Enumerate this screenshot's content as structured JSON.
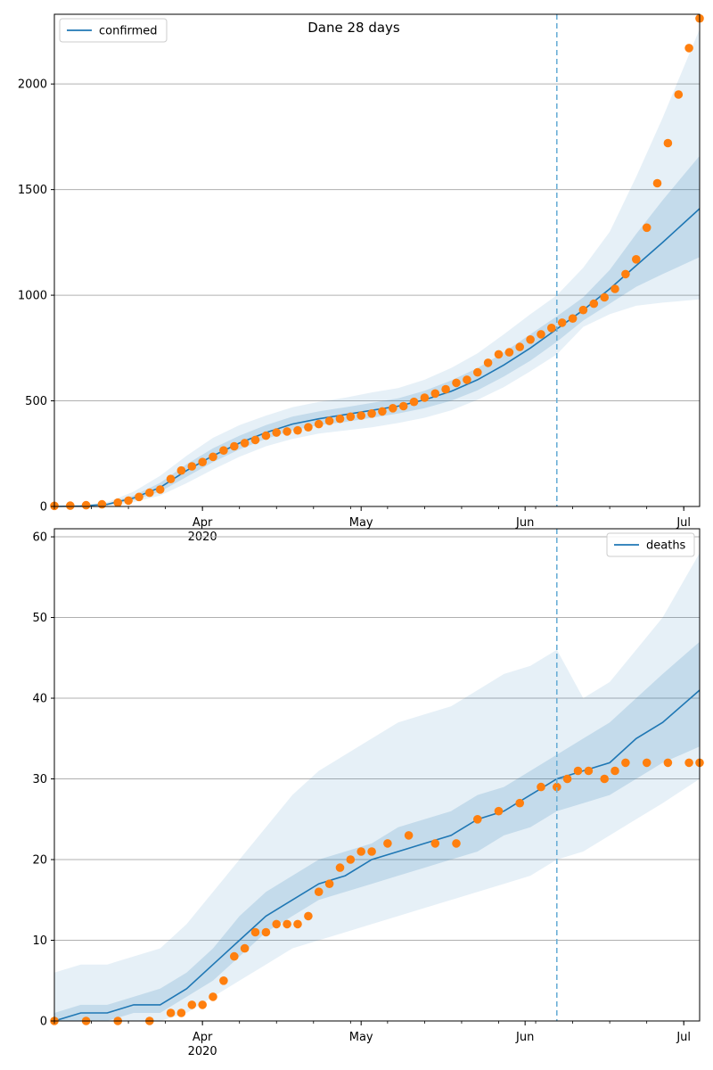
{
  "title": "Dane 28 days",
  "colors": {
    "line": "#1f77b4",
    "band": "#1f77b4",
    "points": "#ff7f0e",
    "grid": "#b0b0b0",
    "vline": "#6aaed6"
  },
  "chart_data": [
    {
      "type": "line",
      "title": "Dane 28 days",
      "legend": {
        "label": "confirmed",
        "placement": "top-left"
      },
      "x_range": [
        "2020-03-04",
        "2020-07-04"
      ],
      "ylim": [
        0,
        2330
      ],
      "y_ticks": [
        0,
        500,
        1000,
        1500,
        2000
      ],
      "x_tick_labels": [
        {
          "date": "2020-04-01",
          "label": "Apr",
          "sublabel": "2020"
        },
        {
          "date": "2020-05-01",
          "label": "May"
        },
        {
          "date": "2020-06-01",
          "label": "Jun"
        },
        {
          "date": "2020-07-01",
          "label": "Jul"
        }
      ],
      "grid": "horizontal",
      "forecast_start": "2020-06-07",
      "model": {
        "name": "confirmed",
        "x": [
          "2020-03-04",
          "2020-03-09",
          "2020-03-14",
          "2020-03-19",
          "2020-03-24",
          "2020-03-29",
          "2020-04-03",
          "2020-04-08",
          "2020-04-13",
          "2020-04-18",
          "2020-04-23",
          "2020-04-28",
          "2020-05-03",
          "2020-05-08",
          "2020-05-13",
          "2020-05-18",
          "2020-05-23",
          "2020-05-28",
          "2020-06-02",
          "2020-06-07",
          "2020-06-12",
          "2020-06-17",
          "2020-06-22",
          "2020-06-27",
          "2020-07-04"
        ],
        "mean": [
          0,
          2,
          10,
          40,
          90,
          170,
          240,
          300,
          350,
          390,
          415,
          435,
          455,
          475,
          505,
          545,
          600,
          670,
          750,
          840,
          930,
          1030,
          1140,
          1250,
          1410
        ],
        "inner_low": [
          0,
          1,
          6,
          30,
          70,
          140,
          210,
          270,
          320,
          360,
          385,
          400,
          420,
          440,
          465,
          500,
          550,
          615,
          690,
          780,
          880,
          960,
          1040,
          1100,
          1180
        ],
        "inner_high": [
          0,
          3,
          14,
          52,
          112,
          200,
          275,
          335,
          385,
          425,
          450,
          470,
          490,
          512,
          548,
          596,
          655,
          730,
          815,
          900,
          990,
          1120,
          1290,
          1450,
          1660
        ],
        "outer_low": [
          0,
          0,
          3,
          20,
          52,
          110,
          175,
          235,
          285,
          320,
          345,
          360,
          375,
          395,
          420,
          455,
          505,
          565,
          640,
          720,
          850,
          910,
          950,
          965,
          980
        ],
        "outer_high": [
          0,
          5,
          20,
          70,
          145,
          240,
          325,
          385,
          430,
          470,
          495,
          515,
          540,
          560,
          600,
          655,
          725,
          815,
          910,
          1000,
          1130,
          1300,
          1560,
          1840,
          2260
        ]
      },
      "observed": {
        "x": [
          "2020-03-04",
          "2020-03-07",
          "2020-03-10",
          "2020-03-13",
          "2020-03-16",
          "2020-03-18",
          "2020-03-20",
          "2020-03-22",
          "2020-03-24",
          "2020-03-26",
          "2020-03-28",
          "2020-03-30",
          "2020-04-01",
          "2020-04-03",
          "2020-04-05",
          "2020-04-07",
          "2020-04-09",
          "2020-04-11",
          "2020-04-13",
          "2020-04-15",
          "2020-04-17",
          "2020-04-19",
          "2020-04-21",
          "2020-04-23",
          "2020-04-25",
          "2020-04-27",
          "2020-04-29",
          "2020-05-01",
          "2020-05-03",
          "2020-05-05",
          "2020-05-07",
          "2020-05-09",
          "2020-05-11",
          "2020-05-13",
          "2020-05-15",
          "2020-05-17",
          "2020-05-19",
          "2020-05-21",
          "2020-05-23",
          "2020-05-25",
          "2020-05-27",
          "2020-05-29",
          "2020-05-31",
          "2020-06-02",
          "2020-06-04",
          "2020-06-06",
          "2020-06-08",
          "2020-06-10",
          "2020-06-12",
          "2020-06-14",
          "2020-06-16",
          "2020-06-18",
          "2020-06-20",
          "2020-06-22",
          "2020-06-24",
          "2020-06-26",
          "2020-06-28",
          "2020-06-30",
          "2020-07-02",
          "2020-07-04"
        ],
        "y": [
          3,
          4,
          6,
          10,
          18,
          28,
          45,
          65,
          80,
          130,
          170,
          190,
          210,
          235,
          265,
          285,
          300,
          315,
          335,
          350,
          355,
          360,
          375,
          390,
          405,
          415,
          425,
          430,
          440,
          450,
          465,
          475,
          495,
          515,
          535,
          555,
          585,
          600,
          635,
          680,
          720,
          730,
          755,
          790,
          815,
          845,
          870,
          890,
          930,
          960,
          990,
          1030,
          1100,
          1170,
          1320,
          1530,
          1720,
          1950,
          2170,
          2310
        ]
      }
    },
    {
      "type": "line",
      "legend": {
        "label": "deaths",
        "placement": "top-right"
      },
      "x_range": [
        "2020-03-04",
        "2020-07-04"
      ],
      "ylim": [
        0,
        61
      ],
      "y_ticks": [
        0,
        10,
        20,
        30,
        40,
        50,
        60
      ],
      "x_tick_labels": [
        {
          "date": "2020-04-01",
          "label": "Apr",
          "sublabel": "2020"
        },
        {
          "date": "2020-05-01",
          "label": "May"
        },
        {
          "date": "2020-06-01",
          "label": "Jun"
        },
        {
          "date": "2020-07-01",
          "label": "Jul"
        }
      ],
      "grid": "horizontal",
      "forecast_start": "2020-06-07",
      "model": {
        "name": "deaths",
        "x": [
          "2020-03-04",
          "2020-03-09",
          "2020-03-14",
          "2020-03-19",
          "2020-03-24",
          "2020-03-29",
          "2020-04-03",
          "2020-04-08",
          "2020-04-13",
          "2020-04-18",
          "2020-04-23",
          "2020-04-28",
          "2020-05-03",
          "2020-05-08",
          "2020-05-13",
          "2020-05-18",
          "2020-05-23",
          "2020-05-28",
          "2020-06-02",
          "2020-06-07",
          "2020-06-12",
          "2020-06-17",
          "2020-06-22",
          "2020-06-27",
          "2020-07-04"
        ],
        "mean": [
          0,
          1,
          1,
          2,
          2,
          4,
          7,
          10,
          13,
          15,
          17,
          18,
          20,
          21,
          22,
          23,
          25,
          26,
          28,
          30,
          31,
          32,
          35,
          37,
          41
        ],
        "inner_low": [
          0,
          0,
          0,
          1,
          1,
          3,
          5,
          8,
          11,
          13,
          15,
          16,
          17,
          18,
          19,
          20,
          21,
          23,
          24,
          26,
          27,
          28,
          30,
          32,
          34
        ],
        "inner_high": [
          1,
          2,
          2,
          3,
          4,
          6,
          9,
          13,
          16,
          18,
          20,
          21,
          22,
          24,
          25,
          26,
          28,
          29,
          31,
          33,
          35,
          37,
          40,
          43,
          47
        ],
        "outer_low": [
          0,
          0,
          0,
          0,
          0,
          1,
          3,
          5,
          7,
          9,
          10,
          11,
          12,
          13,
          14,
          15,
          16,
          17,
          18,
          20,
          21,
          23,
          25,
          27,
          30
        ],
        "outer_high": [
          6,
          7,
          7,
          8,
          9,
          12,
          16,
          20,
          24,
          28,
          31,
          33,
          35,
          37,
          38,
          39,
          41,
          43,
          44,
          46,
          40,
          42,
          46,
          50,
          58
        ]
      },
      "observed": {
        "x": [
          "2020-03-04",
          "2020-03-10",
          "2020-03-16",
          "2020-03-22",
          "2020-03-26",
          "2020-03-28",
          "2020-03-30",
          "2020-04-01",
          "2020-04-03",
          "2020-04-05",
          "2020-04-07",
          "2020-04-09",
          "2020-04-11",
          "2020-04-13",
          "2020-04-15",
          "2020-04-17",
          "2020-04-19",
          "2020-04-21",
          "2020-04-23",
          "2020-04-25",
          "2020-04-27",
          "2020-04-29",
          "2020-05-01",
          "2020-05-03",
          "2020-05-06",
          "2020-05-10",
          "2020-05-15",
          "2020-05-19",
          "2020-05-23",
          "2020-05-27",
          "2020-05-31",
          "2020-06-04",
          "2020-06-07",
          "2020-06-09",
          "2020-06-11",
          "2020-06-13",
          "2020-06-16",
          "2020-06-18",
          "2020-06-20",
          "2020-06-24",
          "2020-06-28",
          "2020-07-02",
          "2020-07-04"
        ],
        "y": [
          0,
          0,
          0,
          0,
          1,
          1,
          2,
          2,
          3,
          5,
          8,
          9,
          11,
          11,
          12,
          12,
          12,
          13,
          16,
          17,
          19,
          20,
          21,
          21,
          22,
          23,
          22,
          22,
          25,
          26,
          27,
          29,
          29,
          30,
          31,
          31,
          30,
          31,
          32,
          32,
          32,
          32,
          32
        ]
      }
    }
  ]
}
